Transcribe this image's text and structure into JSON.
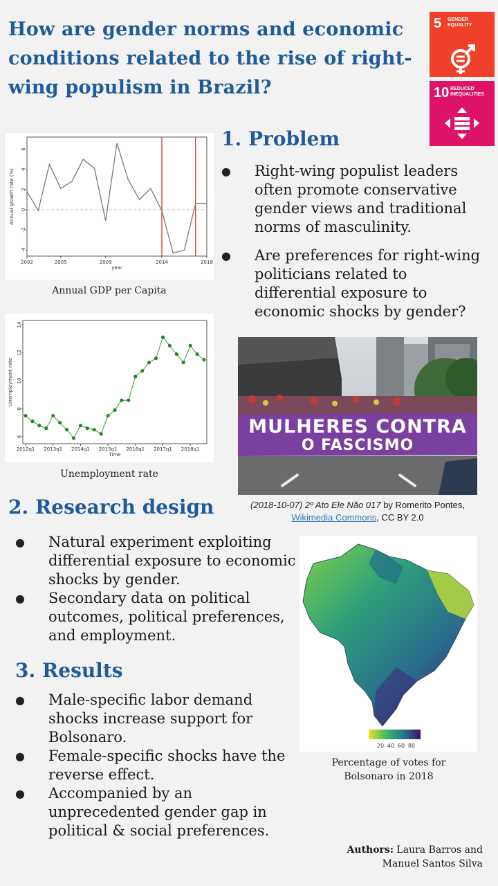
{
  "title": "How are gender norms and economic conditions related to the rise of right-wing populism in Brazil?",
  "sdg": [
    {
      "number": "5",
      "label": "GENDER EQUALITY",
      "color": "#ef402b",
      "icon": "gender-equality-icon"
    },
    {
      "number": "10",
      "label": "REDUCED INEQUALITIES",
      "color": "#dd1367",
      "icon": "reduced-inequalities-icon"
    }
  ],
  "problem": {
    "heading": "1. Problem",
    "bullets": [
      "Right-wing populist leaders often promote conservative gender views and traditional norms of masculinity.",
      "Are preferences for right-wing politicians related to differential exposure to economic shocks by gender?"
    ]
  },
  "gdp_chart": {
    "caption": "Annual GDP per Capita",
    "chart_data": {
      "type": "line",
      "ylabel": "Annual growth rate (%)",
      "xlabel": "year",
      "x": [
        2002,
        2003,
        2004,
        2005,
        2006,
        2007,
        2008,
        2009,
        2010,
        2011,
        2012,
        2013,
        2014,
        2015,
        2016,
        2017,
        2018
      ],
      "values": [
        1.8,
        -0.1,
        4.5,
        2.1,
        2.8,
        5.0,
        4.1,
        -1.1,
        6.6,
        3.0,
        1.0,
        2.1,
        -0.1,
        -4.3,
        -4.0,
        0.6,
        0.6
      ],
      "xticks": [
        2002,
        2005,
        2009,
        2014,
        2018
      ],
      "yticks": [
        -4,
        -2,
        0,
        2,
        4,
        6
      ],
      "xlim": [
        2002,
        2018
      ],
      "ylim": [
        -4.6,
        7.2
      ],
      "reference_lines_x": [
        2014,
        2017
      ],
      "reference_line_y": 0
    }
  },
  "unemp_chart": {
    "caption": "Unemployment rate",
    "chart_data": {
      "type": "line",
      "ylabel": "Unemployment rate",
      "xlabel": "Time",
      "x": [
        "2012q1",
        "2012q2",
        "2012q3",
        "2012q4",
        "2013q1",
        "2013q2",
        "2013q3",
        "2013q4",
        "2014q1",
        "2014q2",
        "2014q3",
        "2014q4",
        "2015q1",
        "2015q2",
        "2015q3",
        "2015q4",
        "2016q1",
        "2016q2",
        "2016q3",
        "2016q4",
        "2017q1",
        "2017q2",
        "2017q3",
        "2017q4",
        "2018q1",
        "2018q2",
        "2018q3"
      ],
      "values": [
        7.5,
        7.1,
        6.8,
        6.6,
        7.5,
        7.0,
        6.5,
        5.9,
        6.8,
        6.6,
        6.5,
        6.2,
        7.5,
        7.9,
        8.6,
        8.6,
        10.3,
        10.7,
        11.3,
        11.6,
        13.1,
        12.5,
        11.9,
        11.3,
        12.5,
        11.9,
        11.5
      ],
      "xticks": [
        "2012q1",
        "2013q1",
        "2014q1",
        "2015q1",
        "2016q1",
        "2017q1",
        "2018q1"
      ],
      "yticks": [
        6,
        8,
        10,
        12,
        14
      ],
      "ylim": [
        5.5,
        14.3
      ]
    }
  },
  "photo": {
    "banner_line1": "MULHERES CONTRA",
    "banner_line2": "O FASCISMO",
    "credit_title": "(2018-10-07) 2º Ato Ele Não 017",
    "credit_by": " by Romerito Pontes, ",
    "credit_link": "Wikimedia Commons",
    "credit_license": ", CC BY 2.0"
  },
  "research": {
    "heading": "2. Research design",
    "bullets": [
      "Natural experiment exploiting differential exposure to economic shocks by gender.",
      "Secondary data on political outcomes, political preferences, and employment."
    ]
  },
  "results": {
    "heading": "3. Results",
    "bullets": [
      "Male-specific labor demand shocks increase support for Bolsonaro.",
      "Female-specific shocks have the reverse effect.",
      "Accompanied by an unprecedented gender gap in political & social preferences."
    ]
  },
  "map": {
    "caption": "Percentage of votes for Bolsonaro in 2018",
    "legend_ticks": [
      "20",
      "40",
      "60",
      "80"
    ]
  },
  "authors": {
    "label": "Authors:",
    "names_line1": " Laura Barros and",
    "names_line2": "Manuel Santos Silva"
  }
}
